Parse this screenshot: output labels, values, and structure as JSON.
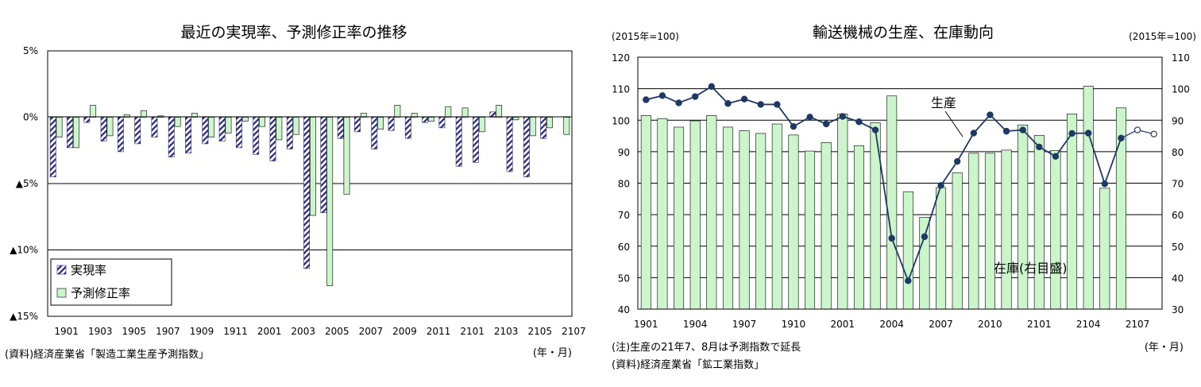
{
  "chart_data": [
    {
      "type": "bar",
      "title": "最近の実現率、予測修正率の推移",
      "xlabel": "(年・月)",
      "ylabel": "",
      "ylim": [
        -15,
        5
      ],
      "yticks": [
        5,
        0,
        -5,
        -10,
        -15
      ],
      "ytick_labels": [
        "5%",
        "0%",
        "▲5%",
        "▲10%",
        "▲15%"
      ],
      "xtick_labels": [
        "1901",
        "1903",
        "1905",
        "1907",
        "1909",
        "1911",
        "2001",
        "2003",
        "2005",
        "2007",
        "2009",
        "2011",
        "2101",
        "2103",
        "2105",
        "2107"
      ],
      "grid": true,
      "legend_position": "bottom-left",
      "source_note": "(資料)経済産業省「製造工業生産予測指数」",
      "series": [
        {
          "name": "実現率",
          "color": "#27277a",
          "values": [
            -4.5,
            -2.3,
            -0.4,
            -1.8,
            -2.6,
            -2.0,
            -1.5,
            -3.0,
            -2.7,
            -2.0,
            -1.8,
            -2.3,
            -2.8,
            -3.3,
            -2.4,
            -11.4,
            -7.2,
            -1.6,
            -1.1,
            -2.4,
            -1.0,
            -1.6,
            -0.4,
            -0.8,
            -3.7,
            -3.4,
            0.4,
            -4.1,
            -4.5,
            -1.6,
            null
          ]
        },
        {
          "name": "予測修正率",
          "color": "#ccf5cc",
          "values": [
            -1.5,
            -2.3,
            0.9,
            -1.4,
            0.2,
            0.5,
            0.1,
            -0.7,
            0.3,
            -1.5,
            -1.2,
            -0.3,
            -0.7,
            -1.7,
            -1.3,
            -7.4,
            -12.7,
            -5.8,
            0.3,
            -0.9,
            0.9,
            0.3,
            -0.3,
            0.8,
            0.7,
            -1.1,
            0.9,
            -0.2,
            -1.4,
            -0.8,
            -1.3
          ]
        }
      ]
    },
    {
      "type": "bar",
      "title": "輸送機械の生産、在庫動向",
      "xlabel": "(年・月)",
      "ylabel": "(2015年=100)",
      "ylabel_right": "(2015年=100)",
      "ylim": [
        40,
        120
      ],
      "ylim_right": [
        30,
        110
      ],
      "yticks": [
        40,
        50,
        60,
        70,
        80,
        90,
        100,
        110,
        120
      ],
      "yticks_right": [
        30,
        40,
        50,
        60,
        70,
        80,
        90,
        100,
        110
      ],
      "xtick_labels": [
        "1901",
        "1904",
        "1907",
        "1910",
        "2001",
        "2004",
        "2007",
        "2010",
        "2101",
        "2104",
        "2107"
      ],
      "grid": true,
      "notes": [
        "(注)生産の21年7、8月は予測指数で延長",
        "(資料)経済産業省「鉱工業指数」"
      ],
      "series": [
        {
          "name": "在庫(右目盛)",
          "type": "bar",
          "axis": "right",
          "color": "#ccf5cc",
          "values": [
            91.5,
            90.5,
            87.8,
            89.8,
            91.5,
            87.8,
            86.7,
            85.8,
            88.8,
            85.3,
            80.2,
            82.9,
            92.0,
            81.9,
            89.2,
            97.7,
            67.3,
            59.2,
            68.6,
            73.3,
            79.5,
            79.5,
            80.5,
            88.5,
            85.2,
            80.4,
            92.0,
            100.8,
            68.4,
            93.9,
            null,
            null
          ]
        },
        {
          "name": "生産",
          "type": "line",
          "axis": "left",
          "color": "#1f3864",
          "values": [
            106.5,
            107.8,
            105.5,
            107.5,
            110.7,
            105.3,
            106.7,
            105.0,
            105.0,
            98.0,
            101.0,
            98.8,
            101.2,
            99.5,
            96.9,
            62.5,
            49.0,
            63.0,
            79.3,
            86.9,
            95.9,
            101.7,
            96.5,
            96.9,
            91.5,
            88.5,
            95.8,
            95.9,
            79.8,
            94.3,
            96.9,
            95.6
          ],
          "forecast_from_index": 30
        }
      ]
    }
  ],
  "labels": {
    "legend1": "実現率",
    "legend2": "予測修正率",
    "production": "生産",
    "inventory": "在庫(右目盛)",
    "unit_left": "(2015年=100)",
    "unit_right": "(2015年=100)"
  }
}
